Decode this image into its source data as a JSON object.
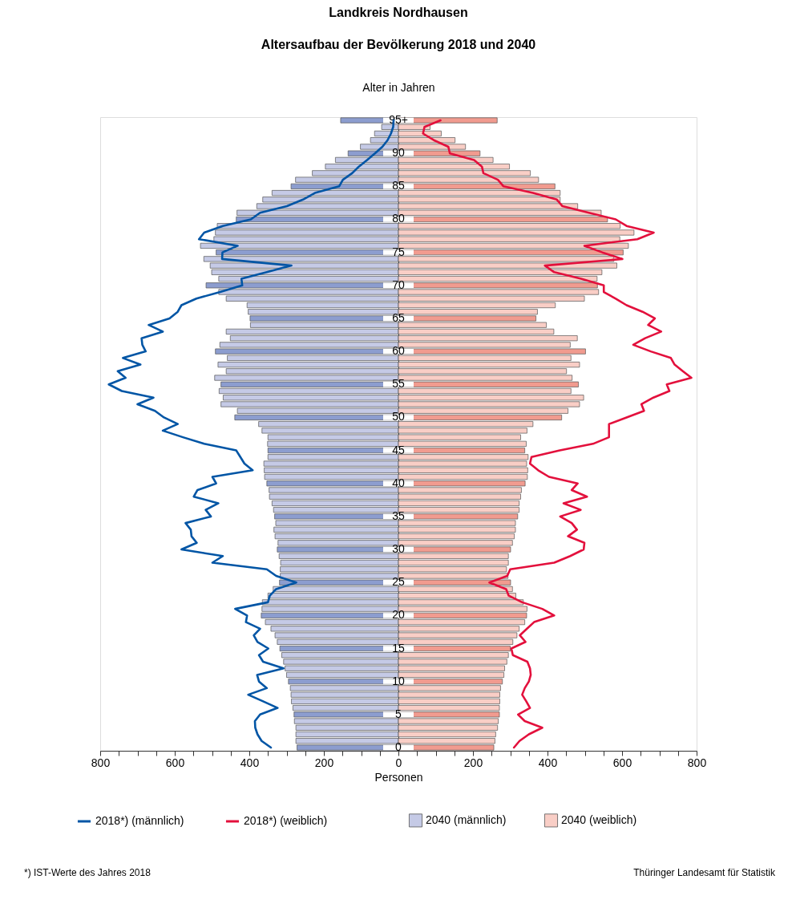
{
  "chart_data": {
    "type": "bar",
    "orientation": "horizontal",
    "title": "Landkreis Nordhausen",
    "subtitle": "Altersaufbau der Bevölkerung 2018 und 2040",
    "ylabel": "Alter in Jahren",
    "xlabel": "Personen",
    "categories": [
      "95+",
      null,
      null,
      null,
      null,
      "90",
      null,
      null,
      null,
      null,
      "85",
      null,
      null,
      null,
      null,
      "80",
      null,
      null,
      null,
      null,
      "75",
      null,
      null,
      null,
      null,
      "70",
      null,
      null,
      null,
      null,
      "65",
      null,
      null,
      null,
      null,
      "60",
      null,
      null,
      null,
      null,
      "55",
      null,
      null,
      null,
      null,
      "50",
      null,
      null,
      null,
      null,
      "45",
      null,
      null,
      null,
      null,
      "40",
      null,
      null,
      null,
      null,
      "35",
      null,
      null,
      null,
      null,
      "30",
      null,
      null,
      null,
      null,
      "25",
      null,
      null,
      null,
      null,
      "20",
      null,
      null,
      null,
      null,
      "15",
      null,
      null,
      null,
      null,
      "10",
      null,
      null,
      null,
      null,
      "5",
      null,
      null,
      null,
      null,
      "0"
    ],
    "xlim": [
      -800,
      800
    ],
    "xticks": [
      {
        "value": -800,
        "label": "800"
      },
      {
        "value": -750,
        "label": null
      },
      {
        "value": -700,
        "label": null
      },
      {
        "value": -650,
        "label": null
      },
      {
        "value": -600,
        "label": "600"
      },
      {
        "value": -550,
        "label": null
      },
      {
        "value": -500,
        "label": null
      },
      {
        "value": -450,
        "label": null
      },
      {
        "value": -400,
        "label": "400"
      },
      {
        "value": -350,
        "label": null
      },
      {
        "value": -300,
        "label": null
      },
      {
        "value": -250,
        "label": null
      },
      {
        "value": -200,
        "label": "200"
      },
      {
        "value": -150,
        "label": null
      },
      {
        "value": -100,
        "label": null
      },
      {
        "value": -50,
        "label": null
      },
      0,
      {
        "value": 50,
        "label": null
      },
      {
        "value": 100,
        "label": null
      },
      {
        "value": 150,
        "label": null
      },
      200,
      {
        "value": 250,
        "label": null
      },
      {
        "value": 300,
        "label": null
      },
      {
        "value": 350,
        "label": null
      },
      400,
      {
        "value": 450,
        "label": null
      },
      {
        "value": 500,
        "label": null
      },
      {
        "value": 550,
        "label": null
      },
      600,
      {
        "value": 650,
        "label": null
      },
      {
        "value": 700,
        "label": null
      },
      {
        "value": 750,
        "label": null
      },
      800
    ],
    "legend": "bottom",
    "stacked": true,
    "series": [
      {
        "name": "2018*) (männlich)",
        "type": "line",
        "color": "#0055a5",
        "values": [
          -13,
          -14,
          -20,
          -29,
          -43,
          -63,
          -84,
          -106,
          -124,
          -149,
          -159,
          -224,
          -256,
          -299,
          -371,
          -396,
          -471,
          -521,
          -535,
          -431,
          -472,
          -473,
          -287,
          -353,
          -421,
          -419,
          -478,
          -542,
          -582,
          -592,
          -614,
          -670,
          -632,
          -689,
          -687,
          -678,
          -739,
          -692,
          -753,
          -732,
          -777,
          -742,
          -657,
          -700,
          -653,
          -629,
          -592,
          -632,
          -578,
          -521,
          -435,
          -424,
          -413,
          -391,
          -499,
          -489,
          -539,
          -549,
          -483,
          -517,
          -503,
          -571,
          -557,
          -555,
          -541,
          -582,
          -471,
          -499,
          -353,
          -328,
          -274,
          -328,
          -345,
          -350,
          -438,
          -406,
          -409,
          -371,
          -388,
          -378,
          -349,
          -374,
          -363,
          -308,
          -379,
          -374,
          -353,
          -403,
          -363,
          -324,
          -371,
          -385,
          -384,
          -378,
          -367,
          -342
        ]
      },
      {
        "name": "2018*) (weiblich)",
        "type": "line",
        "color": "#e3103c",
        "values": [
          113,
          70,
          66,
          95,
          134,
          138,
          203,
          224,
          228,
          267,
          282,
          361,
          425,
          440,
          511,
          583,
          612,
          685,
          641,
          499,
          547,
          601,
          393,
          418,
          490,
          551,
          551,
          583,
          612,
          655,
          688,
          670,
          705,
          662,
          630,
          677,
          731,
          741,
          763,
          786,
          720,
          727,
          684,
          652,
          659,
          612,
          565,
          565,
          565,
          522,
          433,
          357,
          353,
          375,
          404,
          481,
          465,
          506,
          443,
          489,
          434,
          465,
          479,
          455,
          499,
          497,
          461,
          418,
          300,
          292,
          244,
          289,
          296,
          332,
          386,
          418,
          364,
          345,
          326,
          341,
          303,
          307,
          346,
          353,
          355,
          350,
          339,
          332,
          343,
          353,
          321,
          339,
          386,
          350,
          325,
          310
        ]
      },
      {
        "name": "2040 (männlich)",
        "color": "#c5cae6",
        "values": [
          -155,
          -45,
          -64,
          -75,
          -102,
          -135,
          -169,
          -196,
          -231,
          -276,
          -288,
          -339,
          -364,
          -380,
          -433,
          -435,
          -486,
          -491,
          -495,
          -531,
          -489,
          -522,
          -505,
          -501,
          -482,
          -516,
          -482,
          -462,
          -406,
          -403,
          -398,
          -397,
          -462,
          -451,
          -479,
          -491,
          -459,
          -484,
          -462,
          -493,
          -476,
          -481,
          -470,
          -476,
          -432,
          -439,
          -375,
          -366,
          -350,
          -351,
          -350,
          -350,
          -361,
          -360,
          -359,
          -353,
          -347,
          -346,
          -339,
          -335,
          -332,
          -329,
          -334,
          -331,
          -323,
          -325,
          -320,
          -316,
          -317,
          -317,
          -319,
          -336,
          -350,
          -365,
          -366,
          -368,
          -357,
          -342,
          -331,
          -325,
          -318,
          -313,
          -308,
          -304,
          -300,
          -295,
          -290,
          -288,
          -287,
          -283,
          -280,
          -279,
          -275,
          -275,
          -275,
          -272
        ],
        "colors": [
          "#8c9dcf",
          "#c5cae6",
          "#c5cae6",
          "#c5cae6",
          "#c5cae6",
          "#8c9dcf",
          "#c5cae6",
          "#c5cae6",
          "#c5cae6",
          "#c5cae6",
          "#8c9dcf",
          "#c5cae6",
          "#c5cae6",
          "#c5cae6",
          "#c5cae6",
          "#8c9dcf",
          "#c5cae6",
          "#c5cae6",
          "#c5cae6",
          "#c5cae6",
          "#8c9dcf",
          "#c5cae6",
          "#c5cae6",
          "#c5cae6",
          "#c5cae6",
          "#8c9dcf",
          "#c5cae6",
          "#c5cae6",
          "#c5cae6",
          "#c5cae6",
          "#8c9dcf",
          "#c5cae6",
          "#c5cae6",
          "#c5cae6",
          "#c5cae6",
          "#8c9dcf",
          "#c5cae6",
          "#c5cae6",
          "#c5cae6",
          "#c5cae6",
          "#8c9dcf",
          "#c5cae6",
          "#c5cae6",
          "#c5cae6",
          "#c5cae6",
          "#8c9dcf",
          "#c5cae6",
          "#c5cae6",
          "#c5cae6",
          "#c5cae6",
          "#8c9dcf",
          "#c5cae6",
          "#c5cae6",
          "#c5cae6",
          "#c5cae6",
          "#8c9dcf",
          "#c5cae6",
          "#c5cae6",
          "#c5cae6",
          "#c5cae6",
          "#8c9dcf",
          "#c5cae6",
          "#c5cae6",
          "#c5cae6",
          "#c5cae6",
          "#8c9dcf",
          "#c5cae6",
          "#c5cae6",
          "#c5cae6",
          "#c5cae6",
          "#8c9dcf",
          "#c5cae6",
          "#c5cae6",
          "#c5cae6",
          "#c5cae6",
          "#8c9dcf",
          "#c5cae6",
          "#c5cae6",
          "#c5cae6",
          "#c5cae6",
          "#8c9dcf",
          "#c5cae6",
          "#c5cae6",
          "#c5cae6",
          "#c5cae6",
          "#8c9dcf",
          "#c5cae6",
          "#c5cae6",
          "#c5cae6",
          "#c5cae6",
          "#8c9dcf",
          "#c5cae6",
          "#c5cae6",
          "#c5cae6",
          "#c5cae6",
          "#8c9dcf"
        ]
      },
      {
        "name": "2040 (weiblich)",
        "color": "#f9cec6",
        "values": [
          265,
          85,
          115,
          152,
          180,
          219,
          254,
          298,
          354,
          376,
          420,
          434,
          434,
          481,
          544,
          561,
          595,
          632,
          594,
          617,
          603,
          578,
          586,
          546,
          533,
          534,
          537,
          499,
          421,
          373,
          369,
          397,
          417,
          480,
          461,
          502,
          463,
          486,
          451,
          466,
          483,
          463,
          497,
          486,
          455,
          438,
          361,
          345,
          328,
          343,
          339,
          348,
          344,
          347,
          346,
          340,
          330,
          328,
          324,
          324,
          320,
          314,
          314,
          311,
          306,
          301,
          295,
          295,
          290,
          294,
          301,
          306,
          315,
          335,
          345,
          344,
          339,
          324,
          318,
          307,
          300,
          295,
          291,
          285,
          283,
          279,
          274,
          272,
          272,
          271,
          271,
          268,
          266,
          261,
          259,
          256
        ],
        "colors": [
          "#f19b8f",
          "#f9cec6",
          "#f9cec6",
          "#f9cec6",
          "#f9cec6",
          "#f19b8f",
          "#f9cec6",
          "#f9cec6",
          "#f9cec6",
          "#f9cec6",
          "#f19b8f",
          "#f9cec6",
          "#f9cec6",
          "#f9cec6",
          "#f9cec6",
          "#f19b8f",
          "#f9cec6",
          "#f9cec6",
          "#f9cec6",
          "#f9cec6",
          "#f19b8f",
          "#f9cec6",
          "#f9cec6",
          "#f9cec6",
          "#f9cec6",
          "#f19b8f",
          "#f9cec6",
          "#f9cec6",
          "#f9cec6",
          "#f9cec6",
          "#f19b8f",
          "#f9cec6",
          "#f9cec6",
          "#f9cec6",
          "#f9cec6",
          "#f19b8f",
          "#f9cec6",
          "#f9cec6",
          "#f9cec6",
          "#f9cec6",
          "#f19b8f",
          "#f9cec6",
          "#f9cec6",
          "#f9cec6",
          "#f9cec6",
          "#f19b8f",
          "#f9cec6",
          "#f9cec6",
          "#f9cec6",
          "#f9cec6",
          "#f19b8f",
          "#f9cec6",
          "#f9cec6",
          "#f9cec6",
          "#f9cec6",
          "#f19b8f",
          "#f9cec6",
          "#f9cec6",
          "#f9cec6",
          "#f9cec6",
          "#f19b8f",
          "#f9cec6",
          "#f9cec6",
          "#f9cec6",
          "#f9cec6",
          "#f19b8f",
          "#f9cec6",
          "#f9cec6",
          "#f9cec6",
          "#f9cec6",
          "#f19b8f",
          "#f9cec6",
          "#f9cec6",
          "#f9cec6",
          "#f9cec6",
          "#f19b8f",
          "#f9cec6",
          "#f9cec6",
          "#f9cec6",
          "#f9cec6",
          "#f19b8f",
          "#f9cec6",
          "#f9cec6",
          "#f9cec6",
          "#f9cec6",
          "#f19b8f",
          "#f9cec6",
          "#f9cec6",
          "#f9cec6",
          "#f9cec6",
          "#f19b8f",
          "#f9cec6",
          "#f9cec6",
          "#f9cec6",
          "#f9cec6",
          "#f19b8f"
        ]
      }
    ],
    "annotations": [
      "*) IST-Werte des Jahres 2018",
      "Thüringer Landesamt für Statistik"
    ]
  }
}
